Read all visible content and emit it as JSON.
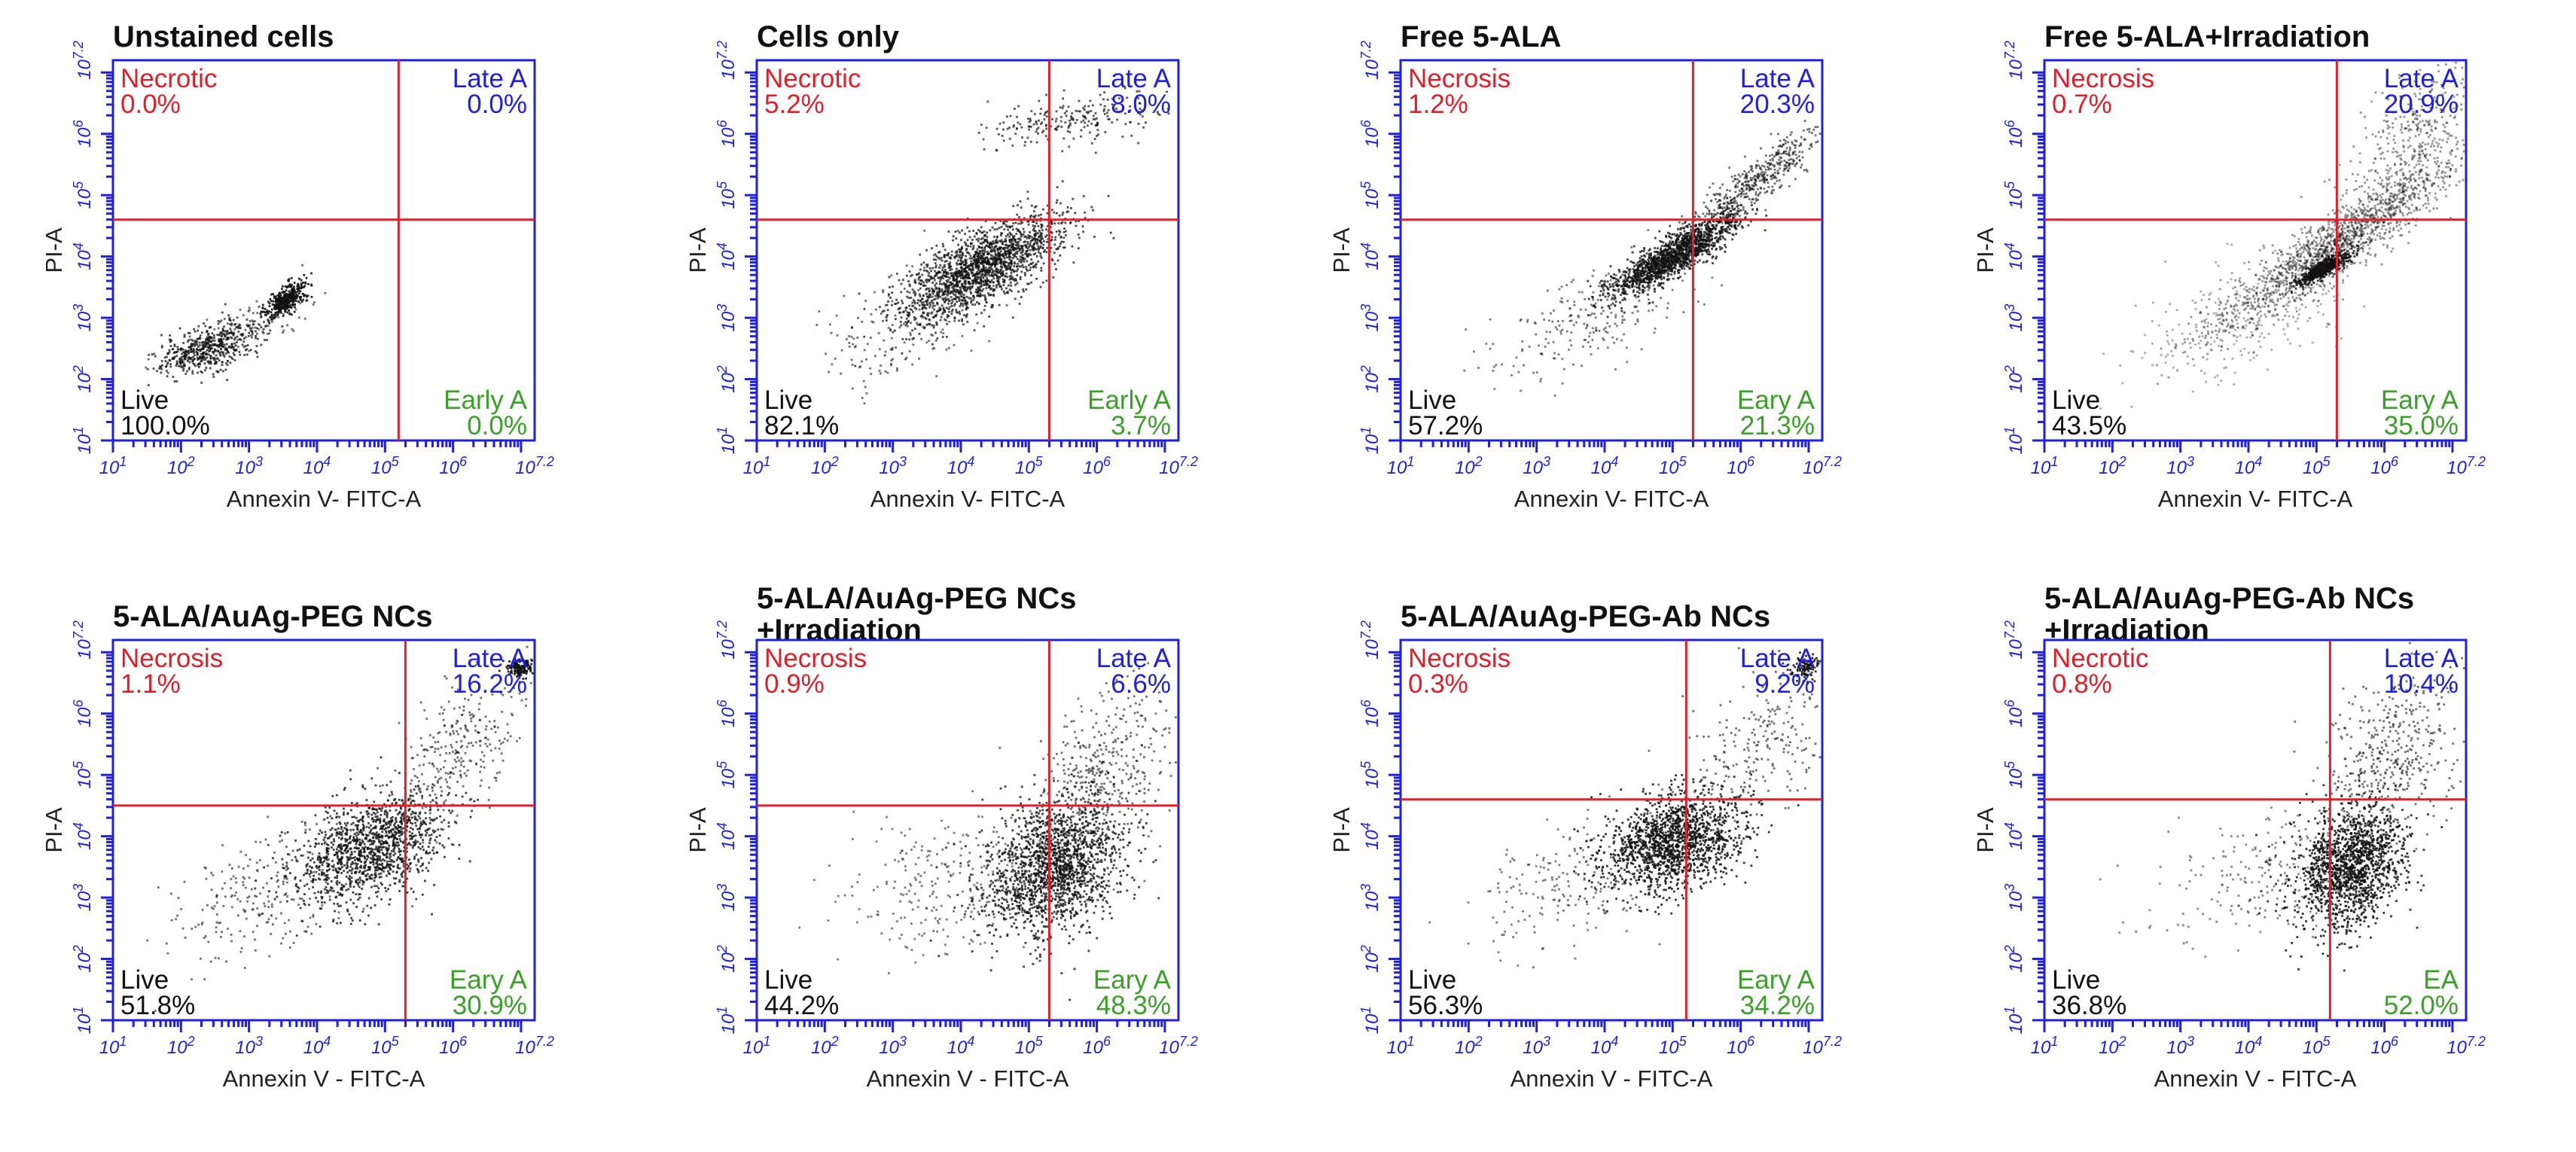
{
  "colors": {
    "frame": "#1f1fe0",
    "gate": "#e0202a",
    "necrotic": "#e01e2a",
    "late": "#1f1fe0",
    "live": "#111111",
    "early": "#3aa028",
    "points": "#111111"
  },
  "axes": {
    "x_label_compact": "Annexin V- FITC-A",
    "x_label_spaced": "Annexin V - FITC-A",
    "y_label": "PI-A",
    "tick_labels": [
      "10^1",
      "10^2",
      "10^3",
      "10^4",
      "10^5",
      "10^6",
      "10^7.2"
    ],
    "tick_values": [
      1,
      2,
      3,
      4,
      5,
      6,
      7.2
    ]
  },
  "chart_data": [
    {
      "type": "scatter",
      "title": "Unstained cells",
      "xlabel": "Annexin V- FITC-A",
      "ylabel": "PI-A",
      "xlim": [
        1,
        7.2
      ],
      "ylim": [
        1,
        7.2
      ],
      "log_scale": true,
      "gate": {
        "x": 5.2,
        "y": 4.6
      },
      "quadrants": {
        "upper_left": {
          "label": "Necrotic",
          "value": "0.0%"
        },
        "upper_right": {
          "label": "Late A",
          "value": "0.0%"
        },
        "lower_left": {
          "label": "Live",
          "value": "100.0%"
        },
        "lower_right": {
          "label": "Early A",
          "value": "0.0%"
        }
      },
      "populations": [
        {
          "cx": 2.4,
          "cy": 2.5,
          "sx": 0.35,
          "sy": 0.22,
          "rho": 0.5,
          "n": 520,
          "opacity": 0.75
        },
        {
          "cx": 3.55,
          "cy": 3.3,
          "sx": 0.14,
          "sy": 0.14,
          "rho": 0.6,
          "n": 380,
          "opacity": 0.9
        },
        {
          "cx": 2.9,
          "cy": 2.8,
          "sx": 0.55,
          "sy": 0.3,
          "rho": 0.8,
          "n": 140,
          "opacity": 0.6
        }
      ]
    },
    {
      "type": "scatter",
      "title": "Cells only",
      "xlabel": "Annexin V- FITC-A",
      "ylabel": "PI-A",
      "xlim": [
        1,
        7.2
      ],
      "ylim": [
        1,
        7.2
      ],
      "log_scale": true,
      "gate": {
        "x": 5.3,
        "y": 4.6
      },
      "quadrants": {
        "upper_left": {
          "label": "Necrotic",
          "value": "5.2%"
        },
        "upper_right": {
          "label": "Late A",
          "value": "8.0%"
        },
        "lower_left": {
          "label": "Live",
          "value": "82.1%"
        },
        "lower_right": {
          "label": "Early A",
          "value": "3.7%"
        }
      },
      "populations": [
        {
          "cx": 4.3,
          "cy": 3.8,
          "sx": 0.6,
          "sy": 0.45,
          "rho": 0.7,
          "n": 1800,
          "opacity": 0.75
        },
        {
          "cx": 5.6,
          "cy": 6.2,
          "sx": 0.6,
          "sy": 0.2,
          "rho": 0.3,
          "n": 220,
          "opacity": 0.7
        },
        {
          "cx": 3.2,
          "cy": 3.0,
          "sx": 0.7,
          "sy": 0.6,
          "rho": 0.6,
          "n": 200,
          "opacity": 0.6
        }
      ]
    },
    {
      "type": "scatter",
      "title": "Free 5-ALA",
      "xlabel": "Annexin V- FITC-A",
      "ylabel": "PI-A",
      "xlim": [
        1,
        7.2
      ],
      "ylim": [
        1,
        7.2
      ],
      "log_scale": true,
      "gate": {
        "x": 5.3,
        "y": 4.6
      },
      "quadrants": {
        "upper_left": {
          "label": "Necrosis",
          "value": "1.2%"
        },
        "upper_right": {
          "label": "Late A",
          "value": "20.3%"
        },
        "lower_left": {
          "label": "Live",
          "value": "57.2%"
        },
        "lower_right": {
          "label": "Eary A",
          "value": "21.3%"
        }
      },
      "populations": [
        {
          "cx": 5.0,
          "cy": 4.0,
          "sx": 0.45,
          "sy": 0.32,
          "rho": 0.85,
          "n": 1500,
          "opacity": 0.8
        },
        {
          "cx": 6.2,
          "cy": 5.2,
          "sx": 0.5,
          "sy": 0.45,
          "rho": 0.9,
          "n": 500,
          "opacity": 0.6
        },
        {
          "cx": 3.8,
          "cy": 3.0,
          "sx": 0.7,
          "sy": 0.55,
          "rho": 0.6,
          "n": 250,
          "opacity": 0.55
        }
      ]
    },
    {
      "type": "scatter",
      "title": "Free 5-ALA+Irradiation",
      "xlabel": "Annexin V- FITC-A",
      "ylabel": "PI-A",
      "xlim": [
        1,
        7.2
      ],
      "ylim": [
        1,
        7.2
      ],
      "log_scale": true,
      "gate": {
        "x": 5.3,
        "y": 4.6
      },
      "quadrants": {
        "upper_left": {
          "label": "Necrosis",
          "value": "0.7%"
        },
        "upper_right": {
          "label": "Late A",
          "value": "20.9%"
        },
        "lower_left": {
          "label": "Live",
          "value": "43.5%"
        },
        "lower_right": {
          "label": "Eary A",
          "value": "35.0%"
        }
      },
      "populations": [
        {
          "cx": 5.3,
          "cy": 4.2,
          "sx": 0.9,
          "sy": 0.7,
          "rho": 0.93,
          "n": 1500,
          "opacity": 0.45
        },
        {
          "cx": 5.1,
          "cy": 3.8,
          "sx": 0.2,
          "sy": 0.14,
          "rho": 0.85,
          "n": 500,
          "opacity": 0.85
        },
        {
          "cx": 6.4,
          "cy": 5.9,
          "sx": 0.5,
          "sy": 0.7,
          "rho": 0.6,
          "n": 400,
          "opacity": 0.45
        },
        {
          "cx": 4.0,
          "cy": 3.0,
          "sx": 0.8,
          "sy": 0.5,
          "rho": 0.6,
          "n": 300,
          "opacity": 0.35
        }
      ]
    },
    {
      "type": "scatter",
      "title": "5-ALA/AuAg-PEG NCs",
      "xlabel": "Annexin V - FITC-A",
      "ylabel": "PI-A",
      "xlim": [
        1,
        7.2
      ],
      "ylim": [
        1,
        7.2
      ],
      "log_scale": true,
      "gate": {
        "x": 5.3,
        "y": 4.5
      },
      "quadrants": {
        "upper_left": {
          "label": "Necrosis",
          "value": "1.1%"
        },
        "upper_right": {
          "label": "Late A",
          "value": "16.2%"
        },
        "lower_left": {
          "label": "Live",
          "value": "51.8%"
        },
        "lower_right": {
          "label": "Eary A",
          "value": "30.9%"
        }
      },
      "populations": [
        {
          "cx": 4.8,
          "cy": 3.8,
          "sx": 0.55,
          "sy": 0.45,
          "rho": 0.4,
          "n": 1300,
          "opacity": 0.8
        },
        {
          "cx": 6.1,
          "cy": 5.4,
          "sx": 0.55,
          "sy": 0.6,
          "rho": 0.5,
          "n": 300,
          "opacity": 0.6
        },
        {
          "cx": 7.0,
          "cy": 6.75,
          "sx": 0.12,
          "sy": 0.08,
          "rho": 0.2,
          "n": 150,
          "opacity": 0.9
        },
        {
          "cx": 3.3,
          "cy": 3.1,
          "sx": 0.8,
          "sy": 0.55,
          "rho": 0.5,
          "n": 260,
          "opacity": 0.6
        }
      ]
    },
    {
      "type": "scatter",
      "title": "5-ALA/AuAg-PEG NCs +Irradiation",
      "title_lines": [
        "5-ALA/AuAg-PEG NCs",
        "+Irradiation"
      ],
      "xlabel": "Annexin V - FITC-A",
      "ylabel": "PI-A",
      "xlim": [
        1,
        7.2
      ],
      "ylim": [
        1,
        7.2
      ],
      "log_scale": true,
      "gate": {
        "x": 5.3,
        "y": 4.5
      },
      "quadrants": {
        "upper_left": {
          "label": "Necrosis",
          "value": "0.9%"
        },
        "upper_right": {
          "label": "Late A",
          "value": "6.6%"
        },
        "lower_left": {
          "label": "Live",
          "value": "44.2%"
        },
        "lower_right": {
          "label": "Eary A",
          "value": "48.3%"
        }
      },
      "populations": [
        {
          "cx": 5.4,
          "cy": 3.5,
          "sx": 0.5,
          "sy": 0.55,
          "rho": 0.3,
          "n": 1700,
          "opacity": 0.8
        },
        {
          "cx": 6.1,
          "cy": 5.0,
          "sx": 0.5,
          "sy": 0.7,
          "rho": 0.4,
          "n": 420,
          "opacity": 0.6
        },
        {
          "cx": 3.9,
          "cy": 3.2,
          "sx": 0.8,
          "sy": 0.6,
          "rho": 0.3,
          "n": 300,
          "opacity": 0.55
        }
      ]
    },
    {
      "type": "scatter",
      "title": "5-ALA/AuAg-PEG-Ab NCs",
      "xlabel": "Annexin V - FITC-A",
      "ylabel": "PI-A",
      "xlim": [
        1,
        7.2
      ],
      "ylim": [
        1,
        7.2
      ],
      "log_scale": true,
      "gate": {
        "x": 5.2,
        "y": 4.6
      },
      "quadrants": {
        "upper_left": {
          "label": "Necrosis",
          "value": "0.3%"
        },
        "upper_right": {
          "label": "Late A",
          "value": "9.2%"
        },
        "lower_left": {
          "label": "Live",
          "value": "56.3%"
        },
        "lower_right": {
          "label": "Eary A",
          "value": "34.2%"
        }
      },
      "populations": [
        {
          "cx": 5.0,
          "cy": 3.9,
          "sx": 0.5,
          "sy": 0.4,
          "rho": 0.3,
          "n": 1500,
          "opacity": 0.85
        },
        {
          "cx": 6.3,
          "cy": 5.5,
          "sx": 0.55,
          "sy": 0.6,
          "rho": 0.4,
          "n": 250,
          "opacity": 0.6
        },
        {
          "cx": 6.95,
          "cy": 6.75,
          "sx": 0.12,
          "sy": 0.1,
          "rho": 0.2,
          "n": 120,
          "opacity": 0.85
        },
        {
          "cx": 3.5,
          "cy": 3.2,
          "sx": 0.7,
          "sy": 0.55,
          "rho": 0.4,
          "n": 220,
          "opacity": 0.55
        }
      ]
    },
    {
      "type": "scatter",
      "title": "5-ALA/AuAg-PEG-Ab NCs +Irradiation",
      "title_lines": [
        "5-ALA/AuAg-PEG-Ab NCs",
        "+Irradiation"
      ],
      "xlabel": "Annexin V - FITC-A",
      "ylabel": "PI-A",
      "xlim": [
        1,
        7.2
      ],
      "ylim": [
        1,
        7.2
      ],
      "log_scale": true,
      "gate": {
        "x": 5.2,
        "y": 4.6
      },
      "quadrants": {
        "upper_left": {
          "label": "Necrotic",
          "value": "0.8%"
        },
        "upper_right": {
          "label": "Late A",
          "value": "10.4%"
        },
        "lower_left": {
          "label": "Live",
          "value": "36.8%"
        },
        "lower_right": {
          "label": "EA",
          "value": "52.0%"
        }
      },
      "populations": [
        {
          "cx": 5.5,
          "cy": 3.5,
          "sx": 0.4,
          "sy": 0.5,
          "rho": 0.2,
          "n": 1500,
          "opacity": 0.85
        },
        {
          "cx": 6.1,
          "cy": 5.3,
          "sx": 0.5,
          "sy": 0.7,
          "rho": 0.4,
          "n": 450,
          "opacity": 0.6
        },
        {
          "cx": 4.3,
          "cy": 3.3,
          "sx": 0.8,
          "sy": 0.5,
          "rho": 0.3,
          "n": 250,
          "opacity": 0.5
        }
      ]
    }
  ]
}
